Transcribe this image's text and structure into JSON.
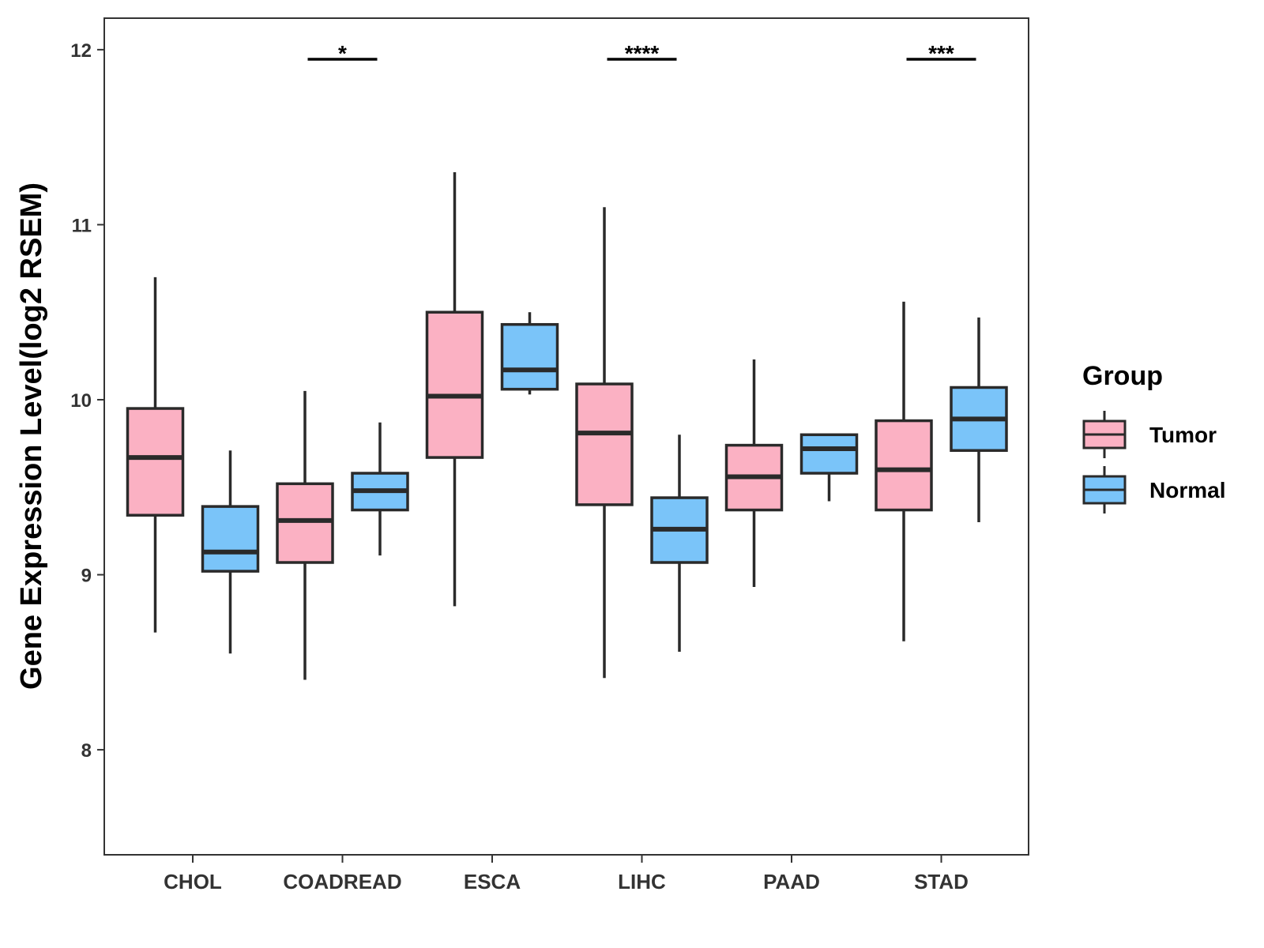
{
  "chart_data": {
    "type": "boxplot",
    "ylabel": "Gene Expression Level(log2 RSEM)",
    "ylim": [
      7.4,
      12.18
    ],
    "yticks": [
      8,
      9,
      10,
      11,
      12
    ],
    "categories": [
      "CHOL",
      "COADREAD",
      "ESCA",
      "LIHC",
      "PAAD",
      "STAD"
    ],
    "legend": {
      "title": "Group",
      "position": "right",
      "entries": [
        {
          "name": "Tumor",
          "color": "#FBB1C3"
        },
        {
          "name": "Normal",
          "color": "#7AC4F9"
        }
      ]
    },
    "series": [
      {
        "name": "Tumor",
        "color": "#FBB1C3",
        "boxes": [
          {
            "min": 8.67,
            "q1": 9.34,
            "median": 9.67,
            "q3": 9.95,
            "max": 10.7
          },
          {
            "min": 8.4,
            "q1": 9.07,
            "median": 9.31,
            "q3": 9.52,
            "max": 10.05
          },
          {
            "min": 8.82,
            "q1": 9.67,
            "median": 10.02,
            "q3": 10.5,
            "max": 11.3
          },
          {
            "min": 8.41,
            "q1": 9.4,
            "median": 9.81,
            "q3": 10.09,
            "max": 11.1
          },
          {
            "min": 8.93,
            "q1": 9.37,
            "median": 9.56,
            "q3": 9.74,
            "max": 10.23
          },
          {
            "min": 8.62,
            "q1": 9.37,
            "median": 9.6,
            "q3": 9.88,
            "max": 10.56
          }
        ]
      },
      {
        "name": "Normal",
        "color": "#7AC4F9",
        "boxes": [
          {
            "min": 8.55,
            "q1": 9.02,
            "median": 9.13,
            "q3": 9.39,
            "max": 9.71
          },
          {
            "min": 9.11,
            "q1": 9.37,
            "median": 9.48,
            "q3": 9.58,
            "max": 9.87
          },
          {
            "min": 10.03,
            "q1": 10.06,
            "median": 10.17,
            "q3": 10.43,
            "max": 10.5
          },
          {
            "min": 8.56,
            "q1": 9.07,
            "median": 9.26,
            "q3": 9.44,
            "max": 9.8
          },
          {
            "min": 9.42,
            "q1": 9.58,
            "median": 9.72,
            "q3": 9.8,
            "max": 9.8
          },
          {
            "min": 9.3,
            "q1": 9.71,
            "median": 9.89,
            "q3": 10.07,
            "max": 10.47
          }
        ]
      }
    ],
    "significance": [
      {
        "category": "COADREAD",
        "label": "*"
      },
      {
        "category": "LIHC",
        "label": "****"
      },
      {
        "category": "STAD",
        "label": "***"
      }
    ]
  }
}
